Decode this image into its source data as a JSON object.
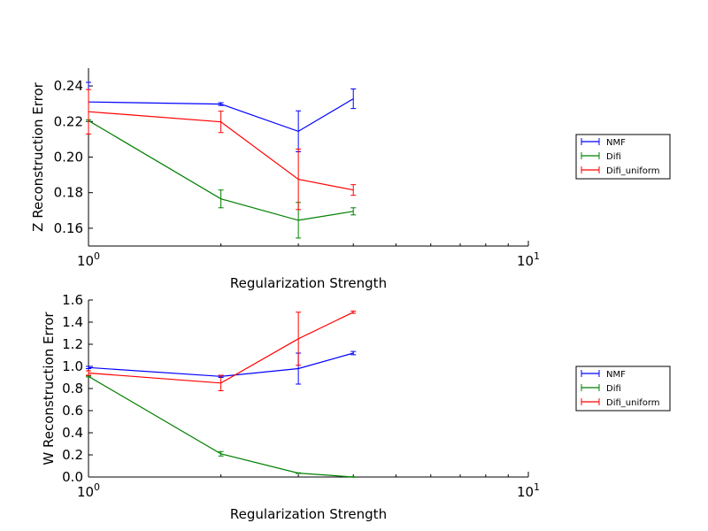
{
  "chart_data": [
    {
      "type": "line",
      "xscale": "log",
      "xlim": [
        1,
        10
      ],
      "ylim": [
        0.15,
        0.25
      ],
      "xlabel": "Regularization Strength",
      "ylabel": "Z Reconstruction Error",
      "x_ticks": [
        {
          "base": "10",
          "exp": "0"
        },
        {
          "base": "10",
          "exp": "1"
        }
      ],
      "y_ticks": [
        0.16,
        0.18,
        0.2,
        0.22,
        0.24
      ],
      "y_tick_labels": [
        "0.16",
        "0.18",
        "0.20",
        "0.22",
        "0.24"
      ],
      "error_bars": true,
      "legend_position": "right, outside plot",
      "x": [
        1,
        2,
        3,
        4
      ],
      "series": [
        {
          "name": "NMF",
          "color": "#0000ff",
          "values": [
            0.231,
            0.2298,
            0.2145,
            0.2328
          ],
          "errors": [
            0.011,
            0.0008,
            0.0115,
            0.0055
          ]
        },
        {
          "name": "Difi",
          "color": "#008000",
          "values": [
            0.2205,
            0.1765,
            0.1645,
            0.1695
          ],
          "errors": [
            0.0005,
            0.005,
            0.01,
            0.002
          ]
        },
        {
          "name": "Difi_uniform",
          "color": "#ff0000",
          "values": [
            0.2255,
            0.2198,
            0.1875,
            0.1815
          ],
          "errors": [
            0.0125,
            0.006,
            0.017,
            0.003
          ]
        }
      ]
    },
    {
      "type": "line",
      "xscale": "log",
      "xlim": [
        1,
        10
      ],
      "ylim": [
        0.0,
        1.6
      ],
      "xlabel": "Regularization Strength",
      "ylabel": "W Reconstruction Error",
      "x_ticks": [
        {
          "base": "10",
          "exp": "0"
        },
        {
          "base": "10",
          "exp": "1"
        }
      ],
      "y_ticks": [
        0.0,
        0.2,
        0.4,
        0.6,
        0.8,
        1.0,
        1.2,
        1.4,
        1.6
      ],
      "y_tick_labels": [
        "0.0",
        "0.2",
        "0.4",
        "0.6",
        "0.8",
        "1.0",
        "1.2",
        "1.4",
        "1.6"
      ],
      "error_bars": true,
      "legend_position": "right, outside plot",
      "x": [
        1,
        2,
        3,
        4
      ],
      "series": [
        {
          "name": "NMF",
          "color": "#0000ff",
          "values": [
            0.99,
            0.91,
            0.98,
            1.12
          ],
          "errors": [
            0.01,
            0.01,
            0.14,
            0.015
          ]
        },
        {
          "name": "Difi",
          "color": "#008000",
          "values": [
            0.91,
            0.21,
            0.035,
            0.0
          ],
          "errors": [
            0.005,
            0.02,
            0.003,
            0.002
          ]
        },
        {
          "name": "Difi_uniform",
          "color": "#ff0000",
          "values": [
            0.94,
            0.85,
            1.25,
            1.49
          ],
          "errors": [
            0.02,
            0.07,
            0.24,
            0.01
          ]
        }
      ]
    }
  ]
}
